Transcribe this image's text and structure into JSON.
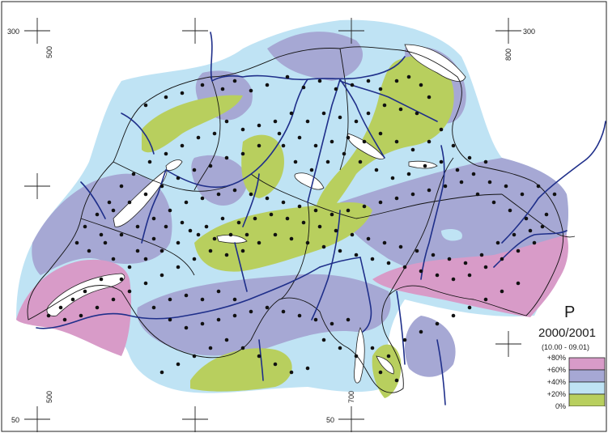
{
  "legend": {
    "symbol": "P",
    "period": "2000/2001",
    "range": "(10.00 - 09.01)",
    "classes": [
      {
        "label": "+80%",
        "color": "#d89bc8"
      },
      {
        "label": "+60%",
        "color": "#a6a8d4"
      },
      {
        "label": "+40%",
        "color": "#bfe3f4"
      },
      {
        "label": "+20%",
        "color": "#b8cf5e"
      },
      {
        "label": "0%",
        "color": "#ffffff"
      }
    ]
  },
  "grid_labels": {
    "top_left": "300",
    "top_right": "300",
    "bottom_left": "50",
    "bottom_mid": "50",
    "x_500_top": "500",
    "x_800_top": "800",
    "x_500_bottom": "500",
    "x_700_bottom": "700"
  },
  "colors": {
    "river": "#1f2f8a",
    "border": "#111111",
    "station": "#111111",
    "lake": "#ffffff"
  }
}
